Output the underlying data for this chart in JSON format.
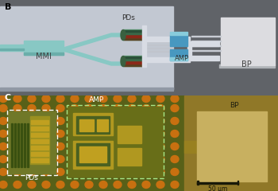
{
  "panel_B": {
    "label": "B",
    "bg_color": "#72767e",
    "chip_color": "#c0c6d0",
    "mmi_color": "#88c8c4",
    "pd_label": "PDs",
    "pd_green": "#5a9870",
    "pd_red": "#8b3020",
    "amp_label": "AMP",
    "amp_blue": "#4898c0",
    "amp_light": "#88ccdc",
    "bp_label": "BP",
    "bp_color": "#dcdce0",
    "mmi_label": "MMI",
    "wire_color": "#c8ccd4",
    "connector_color": "#e0e4e8"
  },
  "panel_C": {
    "label": "C",
    "bg_olive": "#7a6818",
    "bg_green": "#5a6418",
    "gold_bump": "#c87010",
    "green_circuit": "#4a5c18",
    "yellow_pad": "#c0980c",
    "pd_box_label": "PDs",
    "amp_box_label": "AMP",
    "bp_label": "BP",
    "scale_bar_label": "50 μm",
    "dashed_white": "#ffffff",
    "dashed_green": "#90ee90"
  },
  "fig_width": 3.5,
  "fig_height": 2.4,
  "dpi": 100
}
